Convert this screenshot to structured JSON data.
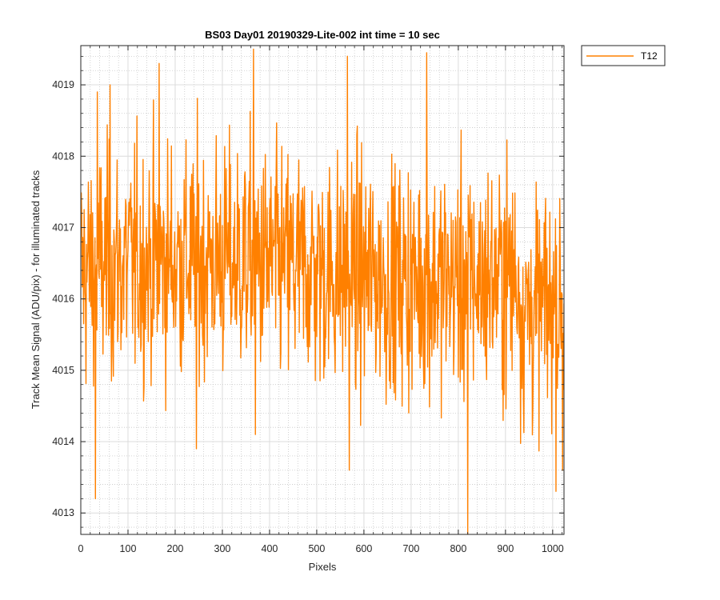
{
  "chart_data": {
    "type": "line",
    "title": "BS03 Day01 20190329-Lite-002 int time = 10 sec",
    "xlabel": "Pixels",
    "ylabel": "Track Mean Signal (ADU/pix) - for illuminated tracks",
    "xlim": [
      0,
      1024
    ],
    "ylim": [
      4012.7,
      4019.55
    ],
    "xticks": [
      0,
      100,
      200,
      300,
      400,
      500,
      600,
      700,
      800,
      900,
      1000
    ],
    "yticks": [
      4013,
      4014,
      4015,
      4016,
      4017,
      4018,
      4019
    ],
    "grid": true,
    "minor_grid": true,
    "legend_position": "outside-top-right",
    "series": [
      {
        "name": "T12",
        "color": "#ff8000",
        "x_start": 1,
        "x_step": 1,
        "n_points": 1024,
        "approximate_mean": 4016.4,
        "approximate_range": [
          4012.7,
          4019.55
        ],
        "shape_note": "noisy trace",
        "peaks": [
          {
            "x": 31,
            "y": 4013.2
          },
          {
            "x": 35,
            "y": 4018.9
          },
          {
            "x": 62,
            "y": 4019.0
          },
          {
            "x": 166,
            "y": 4019.3
          },
          {
            "x": 245,
            "y": 4013.9
          },
          {
            "x": 366,
            "y": 4019.5
          },
          {
            "x": 370,
            "y": 4014.1
          },
          {
            "x": 565,
            "y": 4019.4
          },
          {
            "x": 569,
            "y": 4013.6
          },
          {
            "x": 733,
            "y": 4019.45
          },
          {
            "x": 820,
            "y": 4012.7
          },
          {
            "x": 1021,
            "y": 4013.6
          }
        ]
      }
    ]
  }
}
